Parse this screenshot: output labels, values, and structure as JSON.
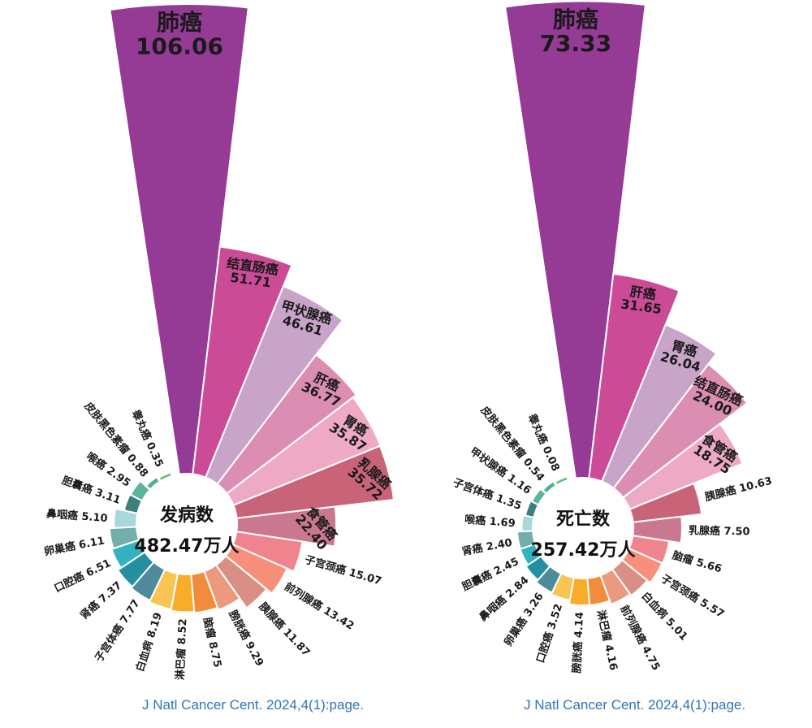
{
  "chart_data": [
    {
      "type": "bar",
      "subtype": "polar-rose",
      "title": "发病数",
      "total": "482.47万人",
      "unit": "万人",
      "categories": [
        "肺癌",
        "结直肠癌",
        "甲状腺癌",
        "肝癌",
        "胃癌",
        "乳腺癌",
        "食管癌",
        "子宫颈癌",
        "前列腺癌",
        "胰腺癌",
        "膀胱癌",
        "脑瘤",
        "淋巴瘤",
        "白血病",
        "子宫体癌",
        "肾癌",
        "口腔癌",
        "卵巢癌",
        "鼻咽癌",
        "胆囊癌",
        "喉癌",
        "皮肤黑色素瘤",
        "睾丸癌"
      ],
      "values": [
        106.06,
        51.71,
        46.61,
        36.77,
        35.87,
        35.72,
        22.4,
        15.07,
        13.42,
        11.87,
        9.29,
        8.75,
        8.52,
        8.19,
        7.77,
        7.37,
        6.51,
        6.11,
        5.1,
        3.11,
        2.95,
        0.88,
        0.35
      ],
      "labels": [
        "106.06",
        "51.71",
        "46.61",
        "36.77",
        "35.87",
        "35.72",
        "22.40",
        "15.07",
        "13.42",
        "11.87",
        "9.29",
        "8.75",
        "8.52",
        "8.19",
        "7.77",
        "7.37",
        "6.51",
        "6.11",
        "5.10",
        "3.11",
        "2.95",
        "0.88",
        "0.35"
      ],
      "colors": [
        "#953a95",
        "#cc4b97",
        "#c9a4c9",
        "#dc8eb2",
        "#eeaac4",
        "#c96378",
        "#c97890",
        "#f0848e",
        "#f78f7a",
        "#d98f84",
        "#ec9a7e",
        "#f28c3a",
        "#f8ac2a",
        "#f8c555",
        "#4f8b9a",
        "#24909f",
        "#33b2bf",
        "#73aeab",
        "#a7d8dc",
        "#3e7e7c",
        "#5bb49c",
        "#4bb08f",
        "#5bbf6a"
      ],
      "source": "J Natl Cancer Cent. 2024,4(1):page."
    },
    {
      "type": "bar",
      "subtype": "polar-rose",
      "title": "死亡数",
      "total": "257.42万人",
      "unit": "万人",
      "categories": [
        "肺癌",
        "肝癌",
        "胃癌",
        "结直肠癌",
        "食管癌",
        "胰腺癌",
        "乳腺癌",
        "脑瘤",
        "子宫颈癌",
        "白血病",
        "前列腺癌",
        "淋巴瘤",
        "膀胱癌",
        "口腔癌",
        "卵巢癌",
        "鼻咽癌",
        "胆囊癌",
        "肾癌",
        "喉癌",
        "子宫体癌",
        "甲状腺癌",
        "皮肤黑色素瘤",
        "睾丸癌"
      ],
      "values": [
        73.33,
        31.65,
        26.04,
        24.0,
        18.75,
        10.63,
        7.5,
        5.66,
        5.57,
        5.01,
        4.75,
        4.16,
        4.14,
        3.52,
        3.26,
        2.84,
        2.45,
        2.4,
        1.69,
        1.35,
        1.16,
        0.54,
        0.08
      ],
      "labels": [
        "73.33",
        "31.65",
        "26.04",
        "24.00",
        "18.75",
        "10.63",
        "7.50",
        "5.66",
        "5.57",
        "5.01",
        "4.75",
        "4.16",
        "4.14",
        "3.52",
        "3.26",
        "2.84",
        "2.45",
        "2.40",
        "1.69",
        "1.35",
        "1.16",
        "0.54",
        "0.08"
      ],
      "colors": [
        "#953a95",
        "#cc4b97",
        "#c9a4c9",
        "#dc8eb2",
        "#eeaac4",
        "#c96378",
        "#c97890",
        "#f0848e",
        "#f78f7a",
        "#d98f84",
        "#ec9a7e",
        "#f28c3a",
        "#f8ac2a",
        "#f8c555",
        "#4f8b9a",
        "#24909f",
        "#33b2bf",
        "#73aeab",
        "#a7d8dc",
        "#3e7e7c",
        "#5bb49c",
        "#4bb08f",
        "#5bbf6a"
      ],
      "source": "J Natl Cancer Cent. 2024,4(1):page."
    }
  ]
}
